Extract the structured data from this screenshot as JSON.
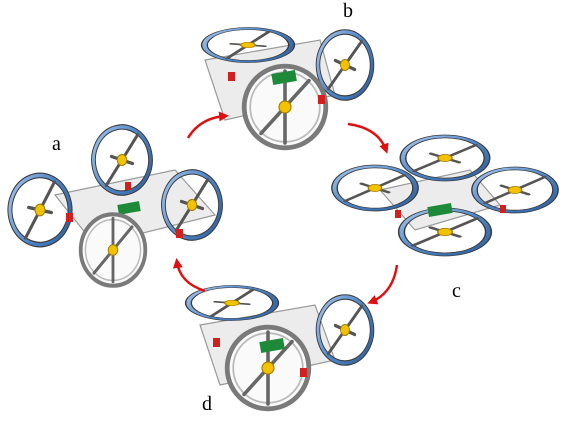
{
  "labels": {
    "a": "a",
    "b": "b",
    "c": "c",
    "d": "d"
  },
  "colors": {
    "arrow": "#e01010",
    "rim_blue": "#6fa0d8",
    "rim_gray": "#8c8c8c",
    "frame": "#d9d9d9",
    "motor": "#f2c200",
    "board": "#1d8a3a",
    "servo": "#d02020"
  },
  "configurations": [
    "a",
    "b",
    "c",
    "d"
  ],
  "transitions": [
    {
      "from": "a",
      "to": "b"
    },
    {
      "from": "b",
      "to": "c"
    },
    {
      "from": "c",
      "to": "d"
    },
    {
      "from": "d",
      "to": "a"
    }
  ]
}
